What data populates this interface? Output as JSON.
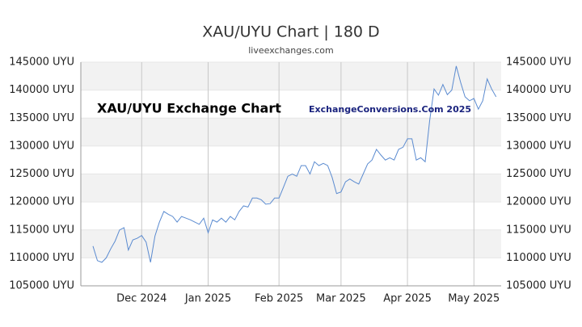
{
  "chart_data": {
    "type": "line",
    "title": "XAU/UYU Chart | 180 D",
    "subtitle": "liveexchanges.com",
    "annotations": [
      "XAU/UYU Exchange Chart",
      "ExchangeConversions.Com 2025"
    ],
    "categories": [
      null,
      null,
      null,
      null,
      null,
      null,
      null,
      null,
      null,
      null,
      null,
      "Dec 2024",
      null,
      null,
      null,
      null,
      null,
      null,
      null,
      null,
      null,
      null,
      null,
      null,
      null,
      null,
      "Jan 2025",
      null,
      null,
      null,
      null,
      null,
      null,
      null,
      null,
      null,
      null,
      null,
      null,
      null,
      null,
      null,
      "Feb 2025",
      null,
      null,
      null,
      null,
      null,
      null,
      null,
      null,
      null,
      null,
      null,
      null,
      null,
      "Mar 2025",
      null,
      null,
      null,
      null,
      null,
      null,
      null,
      null,
      null,
      null,
      null,
      null,
      null,
      null,
      "Apr 2025",
      null,
      null,
      null,
      null,
      null,
      null,
      null,
      null,
      null,
      null,
      null,
      null,
      null,
      null,
      "May 2025",
      null,
      null,
      null,
      null,
      null
    ],
    "series": [
      {
        "name": "XAU/UYU",
        "color": "#5b8bd0",
        "values": [
          112100,
          109500,
          109200,
          110000,
          111600,
          113000,
          115000,
          115400,
          111400,
          113200,
          113500,
          114000,
          112800,
          109200,
          113900,
          116400,
          118300,
          117800,
          117400,
          116400,
          117400,
          117100,
          116800,
          116400,
          116000,
          117100,
          114500,
          116800,
          116400,
          117100,
          116400,
          117400,
          116800,
          118300,
          119300,
          119100,
          120700,
          120700,
          120400,
          119600,
          119700,
          120700,
          120700,
          122600,
          124600,
          125000,
          124600,
          126500,
          126500,
          125000,
          127200,
          126500,
          126900,
          126500,
          124400,
          121500,
          121800,
          123600,
          124100,
          123600,
          123200,
          125000,
          126800,
          127500,
          129400,
          128400,
          127500,
          127900,
          127500,
          129400,
          129800,
          131300,
          131300,
          127500,
          127900,
          127200,
          134500,
          140200,
          139100,
          141000,
          139200,
          140000,
          144300,
          141400,
          138800,
          138100,
          138500,
          136600,
          138100,
          142000,
          140200,
          138800
        ]
      }
    ],
    "ylim": [
      105000,
      145000
    ],
    "yticks": [
      {
        "value": 105000,
        "label": "105000 UYU"
      },
      {
        "value": 110000,
        "label": "110000 UYU"
      },
      {
        "value": 115000,
        "label": "115000 UYU"
      },
      {
        "value": 120000,
        "label": "120000 UYU"
      },
      {
        "value": 125000,
        "label": "125000 UYU"
      },
      {
        "value": 130000,
        "label": "130000 UYU"
      },
      {
        "value": 135000,
        "label": "135000 UYU"
      },
      {
        "value": 140000,
        "label": "140000 UYU"
      },
      {
        "value": 145000,
        "label": "145000 UYU"
      }
    ],
    "grid": true
  }
}
